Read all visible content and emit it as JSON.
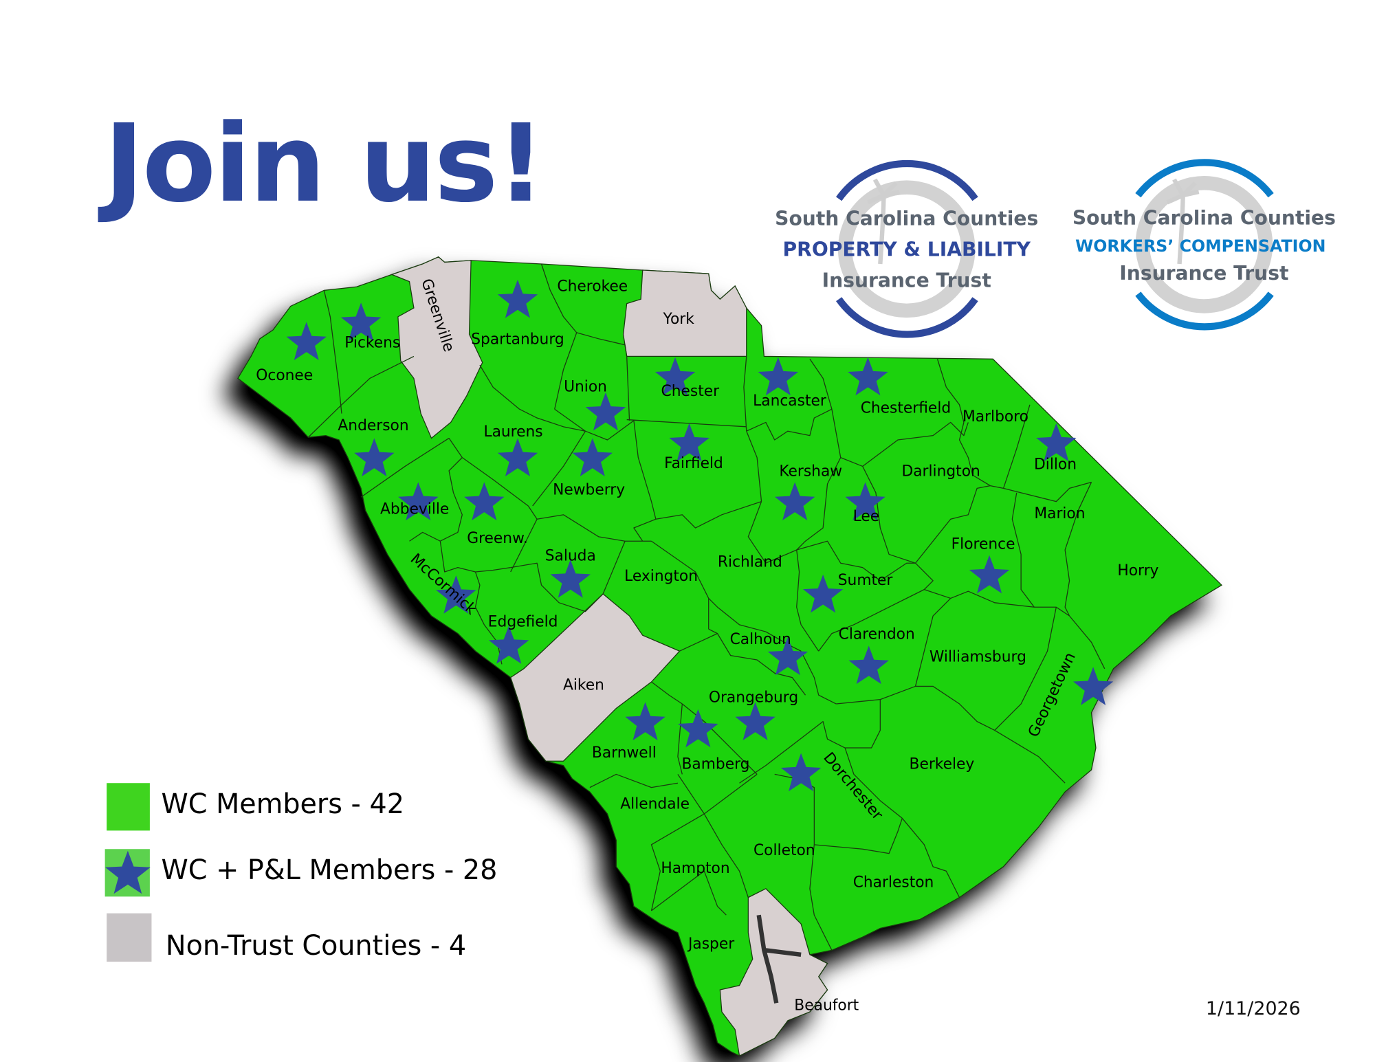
{
  "title": "Join us!",
  "date": "1/11/2026",
  "colors": {
    "wc_member": "#1ad20e",
    "non_trust": "#d8d0d0",
    "star": "#2f4a9e",
    "title": "#2e489c",
    "logo_pl": "#2e489c",
    "logo_wc": "#0a7cc8"
  },
  "logos": [
    {
      "line1": "South Carolina Counties",
      "line2": "PROPERTY & LIABILITY",
      "line3": "Insurance Trust"
    },
    {
      "line1": "South Carolina Counties",
      "line2": "WORKERS’ COMPENSATION",
      "line3": "Insurance Trust"
    }
  ],
  "legend": [
    {
      "label": "WC Members - 42",
      "symbol": "green-square"
    },
    {
      "label": "WC + P&L Members - 28",
      "symbol": "star-icon"
    },
    {
      "label": "Non-Trust Counties - 4",
      "symbol": "gray-square"
    }
  ],
  "counties": [
    {
      "name": "Oconee",
      "status": "WC + P&L"
    },
    {
      "name": "Pickens",
      "status": "WC + P&L"
    },
    {
      "name": "Greenville",
      "status": "Non-Trust"
    },
    {
      "name": "Spartanburg",
      "status": "WC + P&L"
    },
    {
      "name": "Cherokee",
      "status": "WC"
    },
    {
      "name": "York",
      "status": "Non-Trust"
    },
    {
      "name": "Union",
      "status": "WC + P&L"
    },
    {
      "name": "Chester",
      "status": "WC + P&L"
    },
    {
      "name": "Lancaster",
      "status": "WC + P&L"
    },
    {
      "name": "Chesterfield",
      "status": "WC + P&L"
    },
    {
      "name": "Marlboro",
      "status": "WC"
    },
    {
      "name": "Dillon",
      "status": "WC + P&L"
    },
    {
      "name": "Anderson",
      "status": "WC + P&L"
    },
    {
      "name": "Laurens",
      "status": "WC + P&L"
    },
    {
      "name": "Fairfield",
      "status": "WC + P&L"
    },
    {
      "name": "Kershaw",
      "status": "WC + P&L"
    },
    {
      "name": "Darlington",
      "status": "WC"
    },
    {
      "name": "Newberry",
      "status": "WC + P&L"
    },
    {
      "name": "Abbeville",
      "status": "WC + P&L"
    },
    {
      "name": "Lee",
      "status": "WC + P&L"
    },
    {
      "name": "Marion",
      "status": "WC"
    },
    {
      "name": "Greenw.",
      "status": "WC + P&L"
    },
    {
      "name": "Florence",
      "status": "WC + P&L"
    },
    {
      "name": "Saluda",
      "status": "WC + P&L"
    },
    {
      "name": "Richland",
      "status": "WC"
    },
    {
      "name": "Horry",
      "status": "WC"
    },
    {
      "name": "Lexington",
      "status": "WC"
    },
    {
      "name": "Sumter",
      "status": "WC + P&L"
    },
    {
      "name": "McCormick",
      "status": "WC + P&L"
    },
    {
      "name": "Edgefield",
      "status": "WC + P&L"
    },
    {
      "name": "Clarendon",
      "status": "WC + P&L"
    },
    {
      "name": "Calhoun",
      "status": "WC + P&L"
    },
    {
      "name": "Williamsburg",
      "status": "WC"
    },
    {
      "name": "Aiken",
      "status": "Non-Trust"
    },
    {
      "name": "Orangeburg",
      "status": "WC + P&L"
    },
    {
      "name": "Georgetown",
      "status": "WC + P&L"
    },
    {
      "name": "Barnwell",
      "status": "WC + P&L"
    },
    {
      "name": "Bamberg",
      "status": "WC + P&L"
    },
    {
      "name": "Berkeley",
      "status": "WC"
    },
    {
      "name": "Dorchester",
      "status": "WC + P&L"
    },
    {
      "name": "Allendale",
      "status": "WC"
    },
    {
      "name": "Colleton",
      "status": "WC"
    },
    {
      "name": "Hampton",
      "status": "WC"
    },
    {
      "name": "Charleston",
      "status": "WC"
    },
    {
      "name": "Jasper",
      "status": "WC"
    },
    {
      "name": "Beaufort",
      "status": "Non-Trust"
    }
  ]
}
